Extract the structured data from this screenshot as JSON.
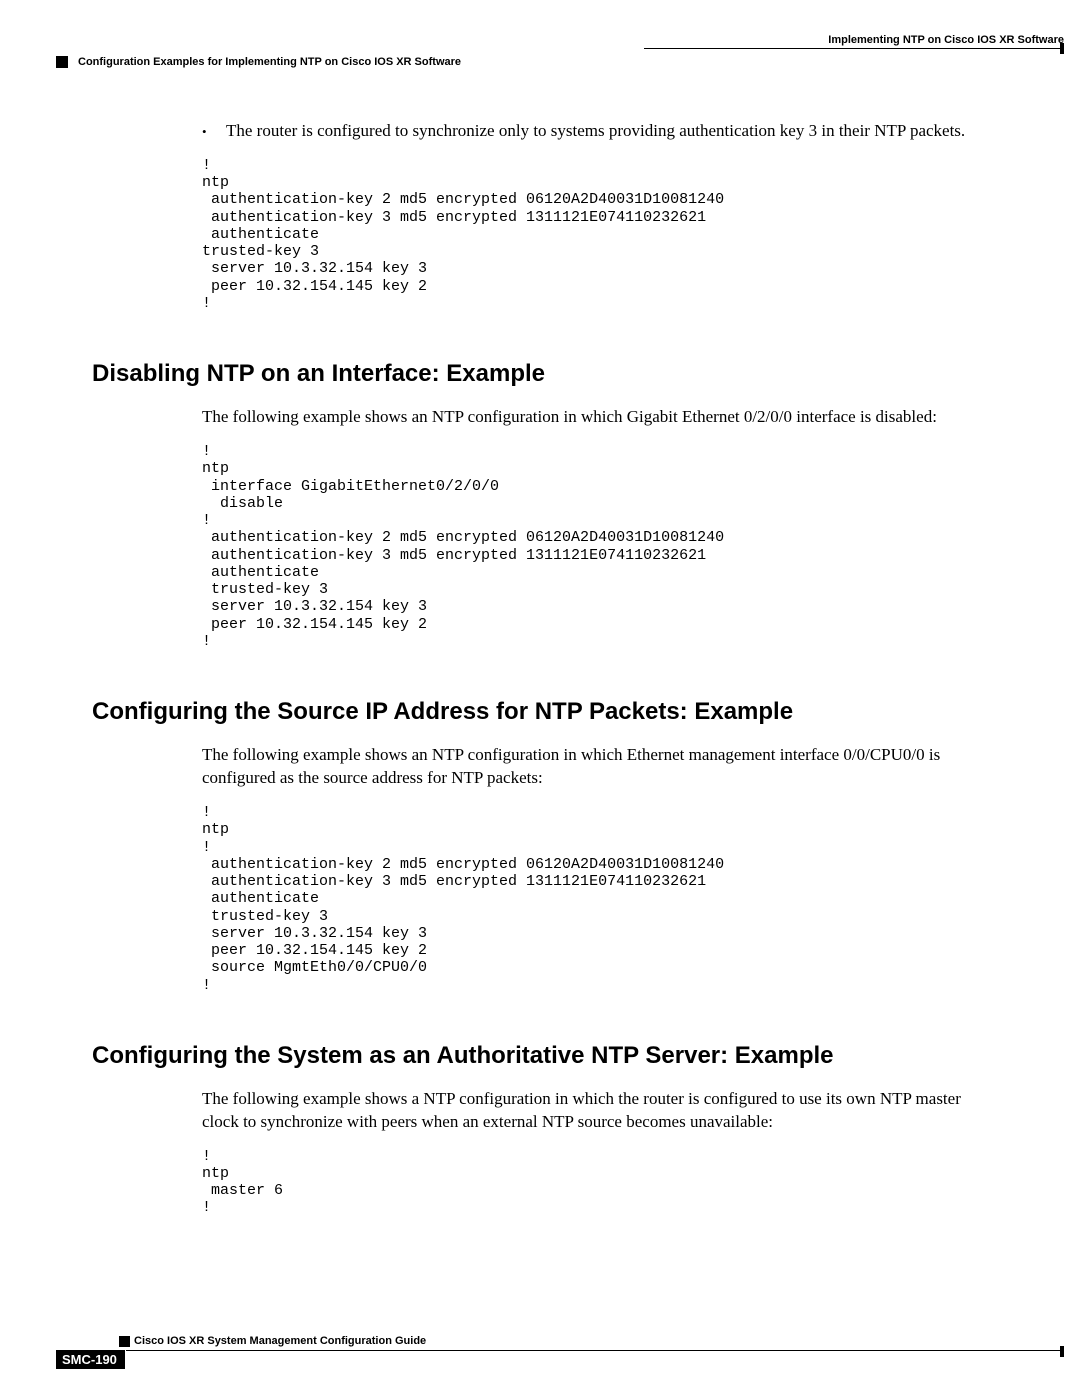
{
  "header": {
    "right": "Implementing NTP on Cisco IOS XR Software",
    "left": "Configuration Examples for Implementing NTP on Cisco IOS XR Software"
  },
  "intro": {
    "bullet": "The router is configured to synchronize only to systems providing authentication key 3 in their NTP packets."
  },
  "code1": "!\nntp\n authentication-key 2 md5 encrypted 06120A2D40031D10081240\n authentication-key 3 md5 encrypted 1311121E074110232621\n authenticate\ntrusted-key 3\n server 10.3.32.154 key 3\n peer 10.32.154.145 key 2\n!",
  "sec1": {
    "title": "Disabling NTP on an Interface: Example",
    "para": "The following example shows an NTP configuration in which Gigabit Ethernet 0/2/0/0 interface is disabled:",
    "code": "!\nntp\n interface GigabitEthernet0/2/0/0\n  disable\n!\n authentication-key 2 md5 encrypted 06120A2D40031D10081240\n authentication-key 3 md5 encrypted 1311121E074110232621\n authenticate\n trusted-key 3\n server 10.3.32.154 key 3\n peer 10.32.154.145 key 2\n!"
  },
  "sec2": {
    "title": "Configuring the Source IP Address for NTP Packets: Example",
    "para": "The following example shows an NTP configuration in which Ethernet management interface 0/0/CPU0/0 is configured as the source address for NTP packets:",
    "code": "!\nntp\n!\n authentication-key 2 md5 encrypted 06120A2D40031D10081240\n authentication-key 3 md5 encrypted 1311121E074110232621\n authenticate\n trusted-key 3\n server 10.3.32.154 key 3\n peer 10.32.154.145 key 2\n source MgmtEth0/0/CPU0/0\n!"
  },
  "sec3": {
    "title": "Configuring the System as an Authoritative NTP Server: Example",
    "para": "The following example shows a NTP configuration in which the router is configured to use its own NTP master clock to synchronize with peers when an external NTP source becomes unavailable:",
    "code": "!\nntp\n master 6\n!"
  },
  "footer": {
    "text": "Cisco IOS XR System Management Configuration Guide",
    "pagenum": "SMC-190"
  }
}
